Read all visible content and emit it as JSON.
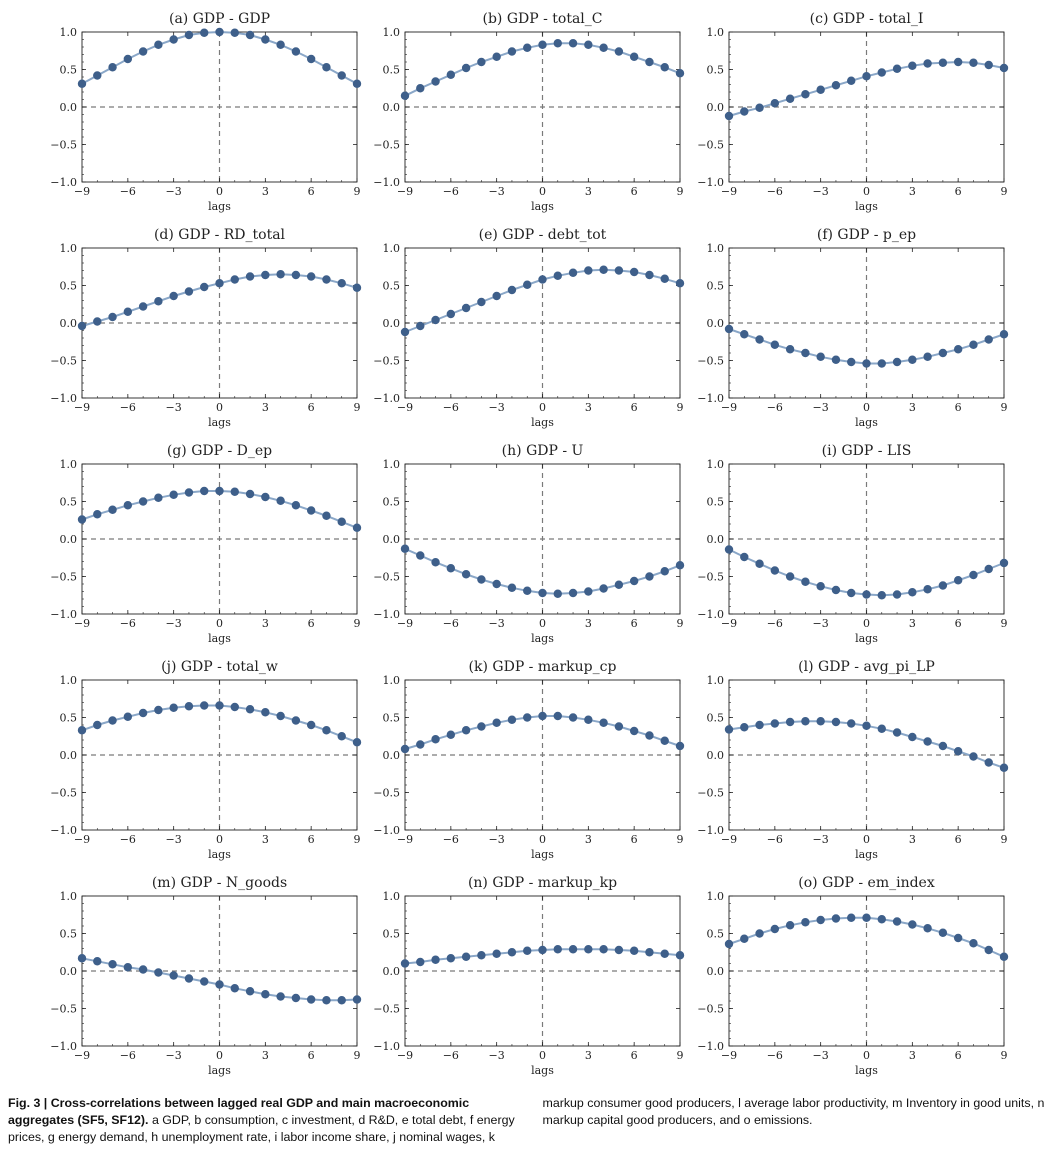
{
  "figure": {
    "caption_label": "Fig. 3 | Cross-correlations between lagged real GDP and main macroeconomic aggregates (SF5, SF12).",
    "caption_text": "a GDP, b consumption, c investment, d R&D, e total debt, f energy prices, g energy demand, h unemployment rate, i labor income share, j nominal wages, k markup consumer good producers, l average labor productivity, m Inventory in good units, n markup capital good producers, and o emissions."
  },
  "chart_data": [
    {
      "type": "line",
      "title": "(a) GDP - GDP",
      "xlabel": "lags",
      "xlim": [
        -9,
        9
      ],
      "ylim": [
        -1,
        1
      ],
      "xticks": [
        -9,
        -6,
        -3,
        0,
        3,
        6,
        9
      ],
      "yticks": [
        -1.0,
        -0.5,
        0.0,
        0.5,
        1.0
      ],
      "x": [
        -9,
        -8,
        -7,
        -6,
        -5,
        -4,
        -3,
        -2,
        -1,
        0,
        1,
        2,
        3,
        4,
        5,
        6,
        7,
        8,
        9
      ],
      "values": [
        0.31,
        0.42,
        0.53,
        0.64,
        0.74,
        0.83,
        0.9,
        0.96,
        0.99,
        1.0,
        0.99,
        0.96,
        0.9,
        0.83,
        0.74,
        0.64,
        0.53,
        0.42,
        0.31
      ],
      "color": "#3e5f8a"
    },
    {
      "type": "line",
      "title": "(b) GDP - total_C",
      "xlabel": "lags",
      "xlim": [
        -9,
        9
      ],
      "ylim": [
        -1,
        1
      ],
      "xticks": [
        -9,
        -6,
        -3,
        0,
        3,
        6,
        9
      ],
      "yticks": [
        -1.0,
        -0.5,
        0.0,
        0.5,
        1.0
      ],
      "x": [
        -9,
        -8,
        -7,
        -6,
        -5,
        -4,
        -3,
        -2,
        -1,
        0,
        1,
        2,
        3,
        4,
        5,
        6,
        7,
        8,
        9
      ],
      "values": [
        0.15,
        0.25,
        0.34,
        0.43,
        0.52,
        0.6,
        0.67,
        0.74,
        0.79,
        0.83,
        0.85,
        0.85,
        0.83,
        0.79,
        0.74,
        0.67,
        0.6,
        0.53,
        0.45
      ],
      "color": "#3e5f8a"
    },
    {
      "type": "line",
      "title": "(c) GDP - total_I",
      "xlabel": "lags",
      "xlim": [
        -9,
        9
      ],
      "ylim": [
        -1,
        1
      ],
      "xticks": [
        -9,
        -6,
        -3,
        0,
        3,
        6,
        9
      ],
      "yticks": [
        -1.0,
        -0.5,
        0.0,
        0.5,
        1.0
      ],
      "x": [
        -9,
        -8,
        -7,
        -6,
        -5,
        -4,
        -3,
        -2,
        -1,
        0,
        1,
        2,
        3,
        4,
        5,
        6,
        7,
        8,
        9
      ],
      "values": [
        -0.12,
        -0.06,
        -0.01,
        0.05,
        0.11,
        0.17,
        0.23,
        0.29,
        0.35,
        0.41,
        0.46,
        0.51,
        0.55,
        0.58,
        0.59,
        0.6,
        0.59,
        0.56,
        0.52
      ],
      "color": "#3e5f8a"
    },
    {
      "type": "line",
      "title": "(d) GDP - RD_total",
      "xlabel": "lags",
      "xlim": [
        -9,
        9
      ],
      "ylim": [
        -1,
        1
      ],
      "xticks": [
        -9,
        -6,
        -3,
        0,
        3,
        6,
        9
      ],
      "yticks": [
        -1.0,
        -0.5,
        0.0,
        0.5,
        1.0
      ],
      "x": [
        -9,
        -8,
        -7,
        -6,
        -5,
        -4,
        -3,
        -2,
        -1,
        0,
        1,
        2,
        3,
        4,
        5,
        6,
        7,
        8,
        9
      ],
      "values": [
        -0.04,
        0.02,
        0.08,
        0.15,
        0.22,
        0.29,
        0.36,
        0.42,
        0.48,
        0.53,
        0.58,
        0.62,
        0.64,
        0.65,
        0.64,
        0.62,
        0.58,
        0.53,
        0.47
      ],
      "color": "#3e5f8a"
    },
    {
      "type": "line",
      "title": "(e) GDP - debt_tot",
      "xlabel": "lags",
      "xlim": [
        -9,
        9
      ],
      "ylim": [
        -1,
        1
      ],
      "xticks": [
        -9,
        -6,
        -3,
        0,
        3,
        6,
        9
      ],
      "yticks": [
        -1.0,
        -0.5,
        0.0,
        0.5,
        1.0
      ],
      "x": [
        -9,
        -8,
        -7,
        -6,
        -5,
        -4,
        -3,
        -2,
        -1,
        0,
        1,
        2,
        3,
        4,
        5,
        6,
        7,
        8,
        9
      ],
      "values": [
        -0.12,
        -0.04,
        0.04,
        0.12,
        0.2,
        0.28,
        0.36,
        0.44,
        0.51,
        0.58,
        0.63,
        0.67,
        0.7,
        0.71,
        0.7,
        0.68,
        0.64,
        0.59,
        0.53
      ],
      "color": "#3e5f8a"
    },
    {
      "type": "line",
      "title": "(f) GDP - p_ep",
      "xlabel": "lags",
      "xlim": [
        -9,
        9
      ],
      "ylim": [
        -1,
        1
      ],
      "xticks": [
        -9,
        -6,
        -3,
        0,
        3,
        6,
        9
      ],
      "yticks": [
        -1.0,
        -0.5,
        0.0,
        0.5,
        1.0
      ],
      "x": [
        -9,
        -8,
        -7,
        -6,
        -5,
        -4,
        -3,
        -2,
        -1,
        0,
        1,
        2,
        3,
        4,
        5,
        6,
        7,
        8,
        9
      ],
      "values": [
        -0.08,
        -0.15,
        -0.22,
        -0.29,
        -0.35,
        -0.4,
        -0.45,
        -0.49,
        -0.52,
        -0.54,
        -0.54,
        -0.52,
        -0.49,
        -0.45,
        -0.4,
        -0.35,
        -0.29,
        -0.22,
        -0.15
      ],
      "color": "#3e5f8a"
    },
    {
      "type": "line",
      "title": "(g) GDP - D_ep",
      "xlabel": "lags",
      "xlim": [
        -9,
        9
      ],
      "ylim": [
        -1,
        1
      ],
      "xticks": [
        -9,
        -6,
        -3,
        0,
        3,
        6,
        9
      ],
      "yticks": [
        -1.0,
        -0.5,
        0.0,
        0.5,
        1.0
      ],
      "x": [
        -9,
        -8,
        -7,
        -6,
        -5,
        -4,
        -3,
        -2,
        -1,
        0,
        1,
        2,
        3,
        4,
        5,
        6,
        7,
        8,
        9
      ],
      "values": [
        0.26,
        0.33,
        0.39,
        0.45,
        0.5,
        0.55,
        0.59,
        0.62,
        0.64,
        0.64,
        0.63,
        0.6,
        0.56,
        0.51,
        0.45,
        0.38,
        0.31,
        0.23,
        0.15
      ],
      "color": "#3e5f8a"
    },
    {
      "type": "line",
      "title": "(h) GDP - U",
      "xlabel": "lags",
      "xlim": [
        -9,
        9
      ],
      "ylim": [
        -1,
        1
      ],
      "xticks": [
        -9,
        -6,
        -3,
        0,
        3,
        6,
        9
      ],
      "yticks": [
        -1.0,
        -0.5,
        0.0,
        0.5,
        1.0
      ],
      "x": [
        -9,
        -8,
        -7,
        -6,
        -5,
        -4,
        -3,
        -2,
        -1,
        0,
        1,
        2,
        3,
        4,
        5,
        6,
        7,
        8,
        9
      ],
      "values": [
        -0.13,
        -0.22,
        -0.31,
        -0.39,
        -0.47,
        -0.54,
        -0.6,
        -0.65,
        -0.69,
        -0.72,
        -0.73,
        -0.72,
        -0.7,
        -0.66,
        -0.61,
        -0.56,
        -0.5,
        -0.43,
        -0.35
      ],
      "color": "#3e5f8a"
    },
    {
      "type": "line",
      "title": "(i) GDP - LIS",
      "xlabel": "lags",
      "xlim": [
        -9,
        9
      ],
      "ylim": [
        -1,
        1
      ],
      "xticks": [
        -9,
        -6,
        -3,
        0,
        3,
        6,
        9
      ],
      "yticks": [
        -1.0,
        -0.5,
        0.0,
        0.5,
        1.0
      ],
      "x": [
        -9,
        -8,
        -7,
        -6,
        -5,
        -4,
        -3,
        -2,
        -1,
        0,
        1,
        2,
        3,
        4,
        5,
        6,
        7,
        8,
        9
      ],
      "values": [
        -0.14,
        -0.24,
        -0.33,
        -0.42,
        -0.5,
        -0.57,
        -0.63,
        -0.68,
        -0.72,
        -0.74,
        -0.75,
        -0.74,
        -0.71,
        -0.67,
        -0.62,
        -0.55,
        -0.48,
        -0.4,
        -0.32
      ],
      "color": "#3e5f8a"
    },
    {
      "type": "line",
      "title": "(j) GDP - total_w",
      "xlabel": "lags",
      "xlim": [
        -9,
        9
      ],
      "ylim": [
        -1,
        1
      ],
      "xticks": [
        -9,
        -6,
        -3,
        0,
        3,
        6,
        9
      ],
      "yticks": [
        -1.0,
        -0.5,
        0.0,
        0.5,
        1.0
      ],
      "x": [
        -9,
        -8,
        -7,
        -6,
        -5,
        -4,
        -3,
        -2,
        -1,
        0,
        1,
        2,
        3,
        4,
        5,
        6,
        7,
        8,
        9
      ],
      "values": [
        0.33,
        0.4,
        0.46,
        0.51,
        0.56,
        0.6,
        0.63,
        0.65,
        0.66,
        0.66,
        0.64,
        0.61,
        0.57,
        0.52,
        0.46,
        0.4,
        0.33,
        0.25,
        0.17
      ],
      "color": "#3e5f8a"
    },
    {
      "type": "line",
      "title": "(k) GDP - markup_cp",
      "xlabel": "lags",
      "xlim": [
        -9,
        9
      ],
      "ylim": [
        -1,
        1
      ],
      "xticks": [
        -9,
        -6,
        -3,
        0,
        3,
        6,
        9
      ],
      "yticks": [
        -1.0,
        -0.5,
        0.0,
        0.5,
        1.0
      ],
      "x": [
        -9,
        -8,
        -7,
        -6,
        -5,
        -4,
        -3,
        -2,
        -1,
        0,
        1,
        2,
        3,
        4,
        5,
        6,
        7,
        8,
        9
      ],
      "values": [
        0.08,
        0.14,
        0.21,
        0.27,
        0.33,
        0.38,
        0.43,
        0.47,
        0.5,
        0.52,
        0.52,
        0.5,
        0.47,
        0.43,
        0.38,
        0.32,
        0.26,
        0.19,
        0.12
      ],
      "color": "#3e5f8a"
    },
    {
      "type": "line",
      "title": "(l) GDP - avg_pi_LP",
      "xlabel": "lags",
      "xlim": [
        -9,
        9
      ],
      "ylim": [
        -1,
        1
      ],
      "xticks": [
        -9,
        -6,
        -3,
        0,
        3,
        6,
        9
      ],
      "yticks": [
        -1.0,
        -0.5,
        0.0,
        0.5,
        1.0
      ],
      "x": [
        -9,
        -8,
        -7,
        -6,
        -5,
        -4,
        -3,
        -2,
        -1,
        0,
        1,
        2,
        3,
        4,
        5,
        6,
        7,
        8,
        9
      ],
      "values": [
        0.34,
        0.37,
        0.4,
        0.42,
        0.44,
        0.45,
        0.45,
        0.44,
        0.42,
        0.39,
        0.35,
        0.3,
        0.24,
        0.18,
        0.12,
        0.05,
        -0.02,
        -0.1,
        -0.17
      ],
      "color": "#3e5f8a"
    },
    {
      "type": "line",
      "title": "(m) GDP - N_goods",
      "xlabel": "lags",
      "xlim": [
        -9,
        9
      ],
      "ylim": [
        -1,
        1
      ],
      "xticks": [
        -9,
        -6,
        -3,
        0,
        3,
        6,
        9
      ],
      "yticks": [
        -1.0,
        -0.5,
        0.0,
        0.5,
        1.0
      ],
      "x": [
        -9,
        -8,
        -7,
        -6,
        -5,
        -4,
        -3,
        -2,
        -1,
        0,
        1,
        2,
        3,
        4,
        5,
        6,
        7,
        8,
        9
      ],
      "values": [
        0.17,
        0.13,
        0.09,
        0.05,
        0.02,
        -0.02,
        -0.06,
        -0.1,
        -0.14,
        -0.18,
        -0.23,
        -0.27,
        -0.31,
        -0.34,
        -0.36,
        -0.38,
        -0.39,
        -0.39,
        -0.38
      ],
      "color": "#3e5f8a"
    },
    {
      "type": "line",
      "title": "(n) GDP - markup_kp",
      "xlabel": "lags",
      "xlim": [
        -9,
        9
      ],
      "ylim": [
        -1,
        1
      ],
      "xticks": [
        -9,
        -6,
        -3,
        0,
        3,
        6,
        9
      ],
      "yticks": [
        -1.0,
        -0.5,
        0.0,
        0.5,
        1.0
      ],
      "x": [
        -9,
        -8,
        -7,
        -6,
        -5,
        -4,
        -3,
        -2,
        -1,
        0,
        1,
        2,
        3,
        4,
        5,
        6,
        7,
        8,
        9
      ],
      "values": [
        0.1,
        0.12,
        0.15,
        0.17,
        0.19,
        0.21,
        0.23,
        0.25,
        0.27,
        0.28,
        0.29,
        0.29,
        0.29,
        0.29,
        0.28,
        0.27,
        0.25,
        0.23,
        0.21
      ],
      "color": "#3e5f8a"
    },
    {
      "type": "line",
      "title": "(o) GDP - em_index",
      "xlabel": "lags",
      "xlim": [
        -9,
        9
      ],
      "ylim": [
        -1,
        1
      ],
      "xticks": [
        -9,
        -6,
        -3,
        0,
        3,
        6,
        9
      ],
      "yticks": [
        -1.0,
        -0.5,
        0.0,
        0.5,
        1.0
      ],
      "x": [
        -9,
        -8,
        -7,
        -6,
        -5,
        -4,
        -3,
        -2,
        -1,
        0,
        1,
        2,
        3,
        4,
        5,
        6,
        7,
        8,
        9
      ],
      "values": [
        0.36,
        0.43,
        0.5,
        0.56,
        0.61,
        0.65,
        0.68,
        0.7,
        0.71,
        0.71,
        0.69,
        0.66,
        0.62,
        0.57,
        0.51,
        0.44,
        0.37,
        0.28,
        0.19
      ],
      "color": "#3e5f8a"
    }
  ]
}
